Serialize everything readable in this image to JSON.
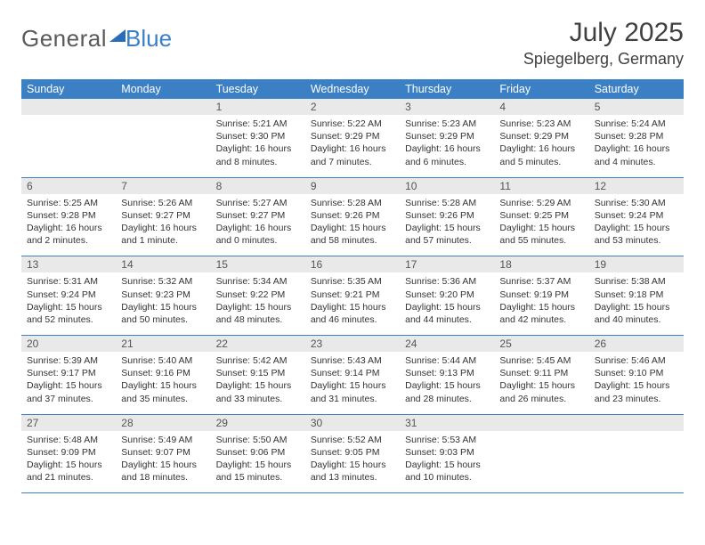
{
  "logo": {
    "text1": "General",
    "text2": "Blue"
  },
  "title": "July 2025",
  "location": "Spiegelberg, Germany",
  "colors": {
    "header_bg": "#3b7fc4",
    "daynum_bg": "#e9e9e9",
    "text": "#333333",
    "rule": "#3b7fc4"
  },
  "weekdays": [
    "Sunday",
    "Monday",
    "Tuesday",
    "Wednesday",
    "Thursday",
    "Friday",
    "Saturday"
  ],
  "weeks": [
    {
      "nums": [
        "",
        "",
        "1",
        "2",
        "3",
        "4",
        "5"
      ],
      "cells": [
        null,
        null,
        {
          "sunrise": "Sunrise: 5:21 AM",
          "sunset": "Sunset: 9:30 PM",
          "day1": "Daylight: 16 hours",
          "day2": "and 8 minutes."
        },
        {
          "sunrise": "Sunrise: 5:22 AM",
          "sunset": "Sunset: 9:29 PM",
          "day1": "Daylight: 16 hours",
          "day2": "and 7 minutes."
        },
        {
          "sunrise": "Sunrise: 5:23 AM",
          "sunset": "Sunset: 9:29 PM",
          "day1": "Daylight: 16 hours",
          "day2": "and 6 minutes."
        },
        {
          "sunrise": "Sunrise: 5:23 AM",
          "sunset": "Sunset: 9:29 PM",
          "day1": "Daylight: 16 hours",
          "day2": "and 5 minutes."
        },
        {
          "sunrise": "Sunrise: 5:24 AM",
          "sunset": "Sunset: 9:28 PM",
          "day1": "Daylight: 16 hours",
          "day2": "and 4 minutes."
        }
      ]
    },
    {
      "nums": [
        "6",
        "7",
        "8",
        "9",
        "10",
        "11",
        "12"
      ],
      "cells": [
        {
          "sunrise": "Sunrise: 5:25 AM",
          "sunset": "Sunset: 9:28 PM",
          "day1": "Daylight: 16 hours",
          "day2": "and 2 minutes."
        },
        {
          "sunrise": "Sunrise: 5:26 AM",
          "sunset": "Sunset: 9:27 PM",
          "day1": "Daylight: 16 hours",
          "day2": "and 1 minute."
        },
        {
          "sunrise": "Sunrise: 5:27 AM",
          "sunset": "Sunset: 9:27 PM",
          "day1": "Daylight: 16 hours",
          "day2": "and 0 minutes."
        },
        {
          "sunrise": "Sunrise: 5:28 AM",
          "sunset": "Sunset: 9:26 PM",
          "day1": "Daylight: 15 hours",
          "day2": "and 58 minutes."
        },
        {
          "sunrise": "Sunrise: 5:28 AM",
          "sunset": "Sunset: 9:26 PM",
          "day1": "Daylight: 15 hours",
          "day2": "and 57 minutes."
        },
        {
          "sunrise": "Sunrise: 5:29 AM",
          "sunset": "Sunset: 9:25 PM",
          "day1": "Daylight: 15 hours",
          "day2": "and 55 minutes."
        },
        {
          "sunrise": "Sunrise: 5:30 AM",
          "sunset": "Sunset: 9:24 PM",
          "day1": "Daylight: 15 hours",
          "day2": "and 53 minutes."
        }
      ]
    },
    {
      "nums": [
        "13",
        "14",
        "15",
        "16",
        "17",
        "18",
        "19"
      ],
      "cells": [
        {
          "sunrise": "Sunrise: 5:31 AM",
          "sunset": "Sunset: 9:24 PM",
          "day1": "Daylight: 15 hours",
          "day2": "and 52 minutes."
        },
        {
          "sunrise": "Sunrise: 5:32 AM",
          "sunset": "Sunset: 9:23 PM",
          "day1": "Daylight: 15 hours",
          "day2": "and 50 minutes."
        },
        {
          "sunrise": "Sunrise: 5:34 AM",
          "sunset": "Sunset: 9:22 PM",
          "day1": "Daylight: 15 hours",
          "day2": "and 48 minutes."
        },
        {
          "sunrise": "Sunrise: 5:35 AM",
          "sunset": "Sunset: 9:21 PM",
          "day1": "Daylight: 15 hours",
          "day2": "and 46 minutes."
        },
        {
          "sunrise": "Sunrise: 5:36 AM",
          "sunset": "Sunset: 9:20 PM",
          "day1": "Daylight: 15 hours",
          "day2": "and 44 minutes."
        },
        {
          "sunrise": "Sunrise: 5:37 AM",
          "sunset": "Sunset: 9:19 PM",
          "day1": "Daylight: 15 hours",
          "day2": "and 42 minutes."
        },
        {
          "sunrise": "Sunrise: 5:38 AM",
          "sunset": "Sunset: 9:18 PM",
          "day1": "Daylight: 15 hours",
          "day2": "and 40 minutes."
        }
      ]
    },
    {
      "nums": [
        "20",
        "21",
        "22",
        "23",
        "24",
        "25",
        "26"
      ],
      "cells": [
        {
          "sunrise": "Sunrise: 5:39 AM",
          "sunset": "Sunset: 9:17 PM",
          "day1": "Daylight: 15 hours",
          "day2": "and 37 minutes."
        },
        {
          "sunrise": "Sunrise: 5:40 AM",
          "sunset": "Sunset: 9:16 PM",
          "day1": "Daylight: 15 hours",
          "day2": "and 35 minutes."
        },
        {
          "sunrise": "Sunrise: 5:42 AM",
          "sunset": "Sunset: 9:15 PM",
          "day1": "Daylight: 15 hours",
          "day2": "and 33 minutes."
        },
        {
          "sunrise": "Sunrise: 5:43 AM",
          "sunset": "Sunset: 9:14 PM",
          "day1": "Daylight: 15 hours",
          "day2": "and 31 minutes."
        },
        {
          "sunrise": "Sunrise: 5:44 AM",
          "sunset": "Sunset: 9:13 PM",
          "day1": "Daylight: 15 hours",
          "day2": "and 28 minutes."
        },
        {
          "sunrise": "Sunrise: 5:45 AM",
          "sunset": "Sunset: 9:11 PM",
          "day1": "Daylight: 15 hours",
          "day2": "and 26 minutes."
        },
        {
          "sunrise": "Sunrise: 5:46 AM",
          "sunset": "Sunset: 9:10 PM",
          "day1": "Daylight: 15 hours",
          "day2": "and 23 minutes."
        }
      ]
    },
    {
      "nums": [
        "27",
        "28",
        "29",
        "30",
        "31",
        "",
        ""
      ],
      "cells": [
        {
          "sunrise": "Sunrise: 5:48 AM",
          "sunset": "Sunset: 9:09 PM",
          "day1": "Daylight: 15 hours",
          "day2": "and 21 minutes."
        },
        {
          "sunrise": "Sunrise: 5:49 AM",
          "sunset": "Sunset: 9:07 PM",
          "day1": "Daylight: 15 hours",
          "day2": "and 18 minutes."
        },
        {
          "sunrise": "Sunrise: 5:50 AM",
          "sunset": "Sunset: 9:06 PM",
          "day1": "Daylight: 15 hours",
          "day2": "and 15 minutes."
        },
        {
          "sunrise": "Sunrise: 5:52 AM",
          "sunset": "Sunset: 9:05 PM",
          "day1": "Daylight: 15 hours",
          "day2": "and 13 minutes."
        },
        {
          "sunrise": "Sunrise: 5:53 AM",
          "sunset": "Sunset: 9:03 PM",
          "day1": "Daylight: 15 hours",
          "day2": "and 10 minutes."
        },
        null,
        null
      ]
    }
  ]
}
